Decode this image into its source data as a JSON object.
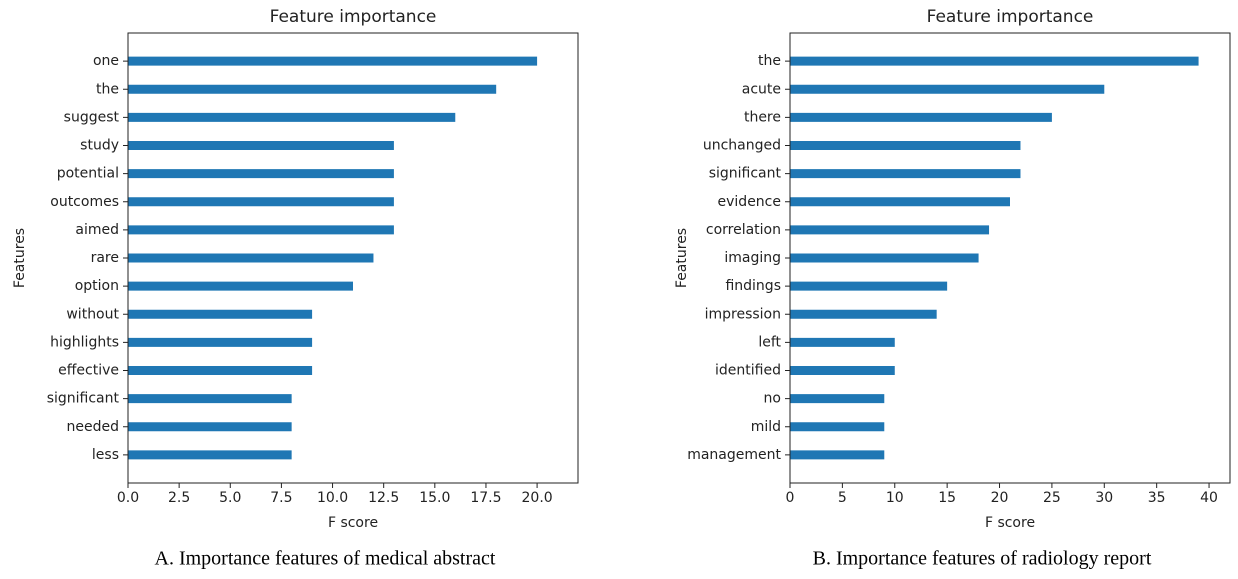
{
  "chart_data": [
    {
      "type": "barh",
      "title": "Feature importance",
      "xlabel": "F score",
      "ylabel": "Features",
      "caption": "A. Importance features of medical abstract",
      "categories": [
        "one",
        "the",
        "suggest",
        "study",
        "potential",
        "outcomes",
        "aimed",
        "rare",
        "option",
        "without",
        "highlights",
        "effective",
        "significant",
        "needed",
        "less"
      ],
      "values": [
        20,
        18,
        16,
        13,
        13,
        13,
        13,
        12,
        11,
        9,
        9,
        9,
        8,
        8,
        8
      ],
      "color": "#1f77b4",
      "xlim": [
        0,
        22
      ],
      "xticks": [
        {
          "value": 0,
          "label": "0.0"
        },
        2.5,
        {
          "value": 5,
          "label": "5.0"
        },
        7.5,
        {
          "value": 10,
          "label": "10.0"
        },
        12.5,
        {
          "value": 15,
          "label": "15.0"
        },
        17.5,
        {
          "value": 20,
          "label": "20.0"
        }
      ]
    },
    {
      "type": "barh",
      "title": "Feature importance",
      "xlabel": "F score",
      "ylabel": "Features",
      "caption": "B. Importance features of radiology report",
      "categories": [
        "the",
        "acute",
        "there",
        "unchanged",
        "significant",
        "evidence",
        "correlation",
        "imaging",
        "findings",
        "impression",
        "left",
        "identified",
        "no",
        "mild",
        "management"
      ],
      "values": [
        39,
        30,
        25,
        22,
        22,
        21,
        19,
        18,
        15,
        14,
        10,
        10,
        9,
        9,
        9
      ],
      "color": "#1f77b4",
      "xlim": [
        0,
        42
      ],
      "xticks": [
        0,
        5,
        10,
        15,
        20,
        25,
        30,
        35,
        40
      ]
    }
  ]
}
